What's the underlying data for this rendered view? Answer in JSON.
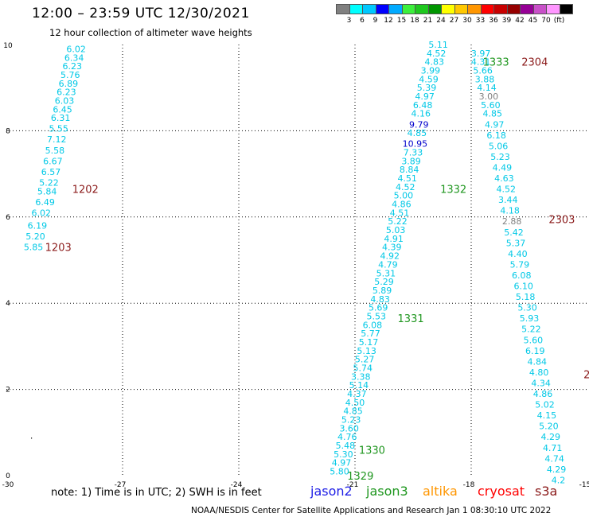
{
  "header": {
    "title": "12:00 – 23:59 UTC 12/30/2021",
    "subtitle": "12 hour collection of altimeter wave heights"
  },
  "colorbar": {
    "colors": [
      "#808080",
      "#00ffff",
      "#00c8ff",
      "#0000ff",
      "#00aaff",
      "#3cf03c",
      "#1ec81e",
      "#009600",
      "#ffff00",
      "#ffc800",
      "#ff9600",
      "#ff0000",
      "#c80000",
      "#960000",
      "#960096",
      "#c850c8",
      "#ff96ff",
      "#000000"
    ],
    "labels": [
      "3",
      "6",
      "9",
      "12",
      "15",
      "18",
      "21",
      "24",
      "27",
      "30",
      "33",
      "36",
      "39",
      "42",
      "45",
      "70",
      "(ft)"
    ]
  },
  "legend": {
    "note": "note:  1) Time is in UTC;  2) SWH is in feet",
    "satellites": [
      {
        "name": "jason2",
        "color": "#1e1ee6"
      },
      {
        "name": "jason3",
        "color": "#1e961e"
      },
      {
        "name": "altika",
        "color": "#ff9600"
      },
      {
        "name": "cryosat",
        "color": "#ff0000"
      },
      {
        "name": "s3a",
        "color": "#8b1a1a"
      }
    ]
  },
  "footer": "NOAA/NESDIS Center for Satellite Applications and Research    Jan  1 08:30:10 UTC 2022",
  "chart_data": {
    "type": "scatter",
    "xlim": [
      -30,
      -15
    ],
    "ylim": [
      0,
      10
    ],
    "x_ticks": [
      "-30",
      "-27",
      "-24",
      "-21",
      "-18",
      "-15"
    ],
    "y_ticks": [
      "0",
      "2",
      "4",
      "6",
      "8",
      "10"
    ],
    "grid": true,
    "tracks": [
      {
        "name": "1202",
        "name_color": "#8b1a1a",
        "label_pos": {
          "x": -28.3,
          "y": 6.65
        },
        "points": [
          {
            "x": -28.2,
            "y": 9.9,
            "v": "6.02",
            "c": "#00c8e6"
          },
          {
            "x": -28.25,
            "y": 9.7,
            "v": "6.34",
            "c": "#00c8e6"
          },
          {
            "x": -28.3,
            "y": 9.5,
            "v": "6.23",
            "c": "#00c8e6"
          },
          {
            "x": -28.35,
            "y": 9.3,
            "v": "5.76",
            "c": "#00c8e6"
          },
          {
            "x": -28.4,
            "y": 9.1,
            "v": "6.89",
            "c": "#00c8e6"
          },
          {
            "x": -28.45,
            "y": 8.9,
            "v": "6.23",
            "c": "#00c8e6"
          },
          {
            "x": -28.5,
            "y": 8.7,
            "v": "6.03",
            "c": "#00c8e6"
          },
          {
            "x": -28.55,
            "y": 8.5,
            "v": "6.45",
            "c": "#00c8e6"
          },
          {
            "x": -28.6,
            "y": 8.3,
            "v": "6.31",
            "c": "#00c8e6"
          },
          {
            "x": -28.65,
            "y": 8.05,
            "v": "5.55",
            "c": "#00c8e6"
          },
          {
            "x": -28.7,
            "y": 7.8,
            "v": "7.12",
            "c": "#00c8e6"
          },
          {
            "x": -28.75,
            "y": 7.55,
            "v": "5.58",
            "c": "#00c8e6"
          },
          {
            "x": -28.8,
            "y": 7.3,
            "v": "6.67",
            "c": "#00c8e6"
          },
          {
            "x": -28.85,
            "y": 7.05,
            "v": "6.57",
            "c": "#00c8e6"
          },
          {
            "x": -28.9,
            "y": 6.8,
            "v": "5.22",
            "c": "#00c8e6"
          },
          {
            "x": -28.95,
            "y": 6.6,
            "v": "5.84",
            "c": "#00c8e6"
          },
          {
            "x": -29.0,
            "y": 6.35,
            "v": "6.49",
            "c": "#00c8e6"
          }
        ]
      },
      {
        "name": "1203",
        "name_color": "#8b1a1a",
        "label_pos": {
          "x": -29.0,
          "y": 5.3
        },
        "points": [
          {
            "x": -29.1,
            "y": 6.1,
            "v": "6.02",
            "c": "#00c8e6"
          },
          {
            "x": -29.2,
            "y": 5.8,
            "v": "6.19",
            "c": "#00c8e6"
          },
          {
            "x": -29.25,
            "y": 5.55,
            "v": "5.20",
            "c": "#00c8e6"
          },
          {
            "x": -29.3,
            "y": 5.3,
            "v": "5.85",
            "c": "#00c8e6"
          }
        ]
      },
      {
        "name": "1329",
        "name_color": "#1e961e",
        "label_pos": {
          "x": -21.2,
          "y": 0.0
        },
        "points": [
          {
            "x": -21.4,
            "y": 0.1,
            "v": "5.80",
            "c": "#00c8e6"
          },
          {
            "x": -21.35,
            "y": 0.3,
            "v": "4.97",
            "c": "#00c8e6"
          },
          {
            "x": -21.3,
            "y": 0.5,
            "v": "5.30",
            "c": "#00c8e6"
          },
          {
            "x": -21.25,
            "y": 0.7,
            "v": "5.48",
            "c": "#00c8e6"
          }
        ]
      },
      {
        "name": "1330",
        "name_color": "#1e961e",
        "label_pos": {
          "x": -20.9,
          "y": 0.6
        },
        "points": [
          {
            "x": -21.2,
            "y": 0.9,
            "v": "4.76",
            "c": "#00c8e6"
          },
          {
            "x": -21.15,
            "y": 1.1,
            "v": "3.60",
            "c": "#00c8e6"
          },
          {
            "x": -21.1,
            "y": 1.3,
            "v": "5.23",
            "c": "#00c8e6"
          },
          {
            "x": -21.05,
            "y": 1.5,
            "v": "4.85",
            "c": "#00c8e6"
          },
          {
            "x": -21.0,
            "y": 1.7,
            "v": "4.50",
            "c": "#00c8e6"
          },
          {
            "x": -20.95,
            "y": 1.9,
            "v": "4.37",
            "c": "#00c8e6"
          },
          {
            "x": -20.9,
            "y": 2.1,
            "v": "5.14",
            "c": "#00c8e6"
          },
          {
            "x": -20.85,
            "y": 2.3,
            "v": "3.38",
            "c": "#00c8e6"
          },
          {
            "x": -20.8,
            "y": 2.5,
            "v": "5.74",
            "c": "#00c8e6"
          },
          {
            "x": -20.75,
            "y": 2.7,
            "v": "5.27",
            "c": "#00c8e6"
          },
          {
            "x": -20.7,
            "y": 2.9,
            "v": "5.13",
            "c": "#00c8e6"
          },
          {
            "x": -20.65,
            "y": 3.1,
            "v": "5.17",
            "c": "#00c8e6"
          },
          {
            "x": -20.6,
            "y": 3.3,
            "v": "5.77",
            "c": "#00c8e6"
          },
          {
            "x": -20.55,
            "y": 3.5,
            "v": "6.08",
            "c": "#00c8e6"
          }
        ]
      },
      {
        "name": "1331",
        "name_color": "#1e961e",
        "label_pos": {
          "x": -19.9,
          "y": 3.65
        },
        "points": [
          {
            "x": -20.45,
            "y": 3.7,
            "v": "5.53",
            "c": "#00c8e6"
          },
          {
            "x": -20.4,
            "y": 3.9,
            "v": "5.69",
            "c": "#00c8e6"
          },
          {
            "x": -20.35,
            "y": 4.1,
            "v": "4.83",
            "c": "#00c8e6"
          },
          {
            "x": -20.3,
            "y": 4.3,
            "v": "5.89",
            "c": "#00c8e6"
          },
          {
            "x": -20.25,
            "y": 4.5,
            "v": "5.29",
            "c": "#00c8e6"
          },
          {
            "x": -20.2,
            "y": 4.7,
            "v": "5.31",
            "c": "#00c8e6"
          },
          {
            "x": -20.15,
            "y": 4.9,
            "v": "4.79",
            "c": "#00c8e6"
          },
          {
            "x": -20.1,
            "y": 5.1,
            "v": "4.92",
            "c": "#00c8e6"
          },
          {
            "x": -20.05,
            "y": 5.3,
            "v": "4.39",
            "c": "#00c8e6"
          },
          {
            "x": -20.0,
            "y": 5.5,
            "v": "4.91",
            "c": "#00c8e6"
          },
          {
            "x": -19.95,
            "y": 5.7,
            "v": "5.03",
            "c": "#00c8e6"
          },
          {
            "x": -19.9,
            "y": 5.9,
            "v": "5.22",
            "c": "#00c8e6"
          },
          {
            "x": -19.85,
            "y": 6.1,
            "v": "4.51",
            "c": "#00c8e6"
          },
          {
            "x": -19.8,
            "y": 6.3,
            "v": "4.86",
            "c": "#00c8e6"
          },
          {
            "x": -19.75,
            "y": 6.5,
            "v": "5.00",
            "c": "#00c8e6"
          }
        ]
      },
      {
        "name": "1332",
        "name_color": "#1e961e",
        "label_pos": {
          "x": -18.8,
          "y": 6.65
        },
        "points": [
          {
            "x": -19.7,
            "y": 6.7,
            "v": "4.52",
            "c": "#00c8e6"
          },
          {
            "x": -19.65,
            "y": 6.9,
            "v": "4.51",
            "c": "#00c8e6"
          },
          {
            "x": -19.6,
            "y": 7.1,
            "v": "8.84",
            "c": "#00c8e6"
          },
          {
            "x": -19.55,
            "y": 7.3,
            "v": "3.89",
            "c": "#00c8e6"
          },
          {
            "x": -19.5,
            "y": 7.5,
            "v": "7.33",
            "c": "#00c8e6"
          },
          {
            "x": -19.45,
            "y": 7.7,
            "v": "10.95",
            "c": "#0000cc"
          },
          {
            "x": -19.4,
            "y": 7.95,
            "v": "4.85",
            "c": "#00c8e6"
          },
          {
            "x": -19.35,
            "y": 8.15,
            "v": "9.79",
            "c": "#0000cc"
          },
          {
            "x": -19.3,
            "y": 8.4,
            "v": "4.16",
            "c": "#00c8e6"
          },
          {
            "x": -19.25,
            "y": 8.6,
            "v": "6.48",
            "c": "#00c8e6"
          },
          {
            "x": -19.2,
            "y": 8.8,
            "v": "4.97",
            "c": "#00c8e6"
          },
          {
            "x": -19.15,
            "y": 9.0,
            "v": "5.39",
            "c": "#00c8e6"
          },
          {
            "x": -19.1,
            "y": 9.2,
            "v": "4.59",
            "c": "#00c8e6"
          },
          {
            "x": -19.05,
            "y": 9.4,
            "v": "3.99",
            "c": "#00c8e6"
          }
        ]
      },
      {
        "name": "1333",
        "name_color": "#1e961e",
        "label_pos": {
          "x": -17.7,
          "y": 9.6
        },
        "points": [
          {
            "x": -18.95,
            "y": 9.6,
            "v": "4.83",
            "c": "#00c8e6"
          },
          {
            "x": -18.9,
            "y": 9.8,
            "v": "4.52",
            "c": "#00c8e6"
          },
          {
            "x": -18.85,
            "y": 10.0,
            "v": "5.11",
            "c": "#00c8e6"
          }
        ]
      },
      {
        "name": "2304",
        "name_color": "#8b1a1a",
        "label_pos": {
          "x": -16.7,
          "y": 9.6
        },
        "points": [
          {
            "x": -17.75,
            "y": 9.8,
            "v": "3.97",
            "c": "#00c8e6"
          },
          {
            "x": -17.75,
            "y": 9.6,
            "v": "4.31",
            "c": "#00c8e6"
          },
          {
            "x": -17.7,
            "y": 9.4,
            "v": "5.66",
            "c": "#00c8e6"
          },
          {
            "x": -17.65,
            "y": 9.2,
            "v": "3.88",
            "c": "#00c8e6"
          },
          {
            "x": -17.6,
            "y": 9.0,
            "v": "4.14",
            "c": "#00c8e6"
          },
          {
            "x": -17.55,
            "y": 8.8,
            "v": "3.00",
            "c": "#808080"
          },
          {
            "x": -17.5,
            "y": 8.6,
            "v": "5.60",
            "c": "#00c8e6"
          },
          {
            "x": -17.45,
            "y": 8.4,
            "v": "4.85",
            "c": "#00c8e6"
          },
          {
            "x": -17.4,
            "y": 8.15,
            "v": "4.97",
            "c": "#00c8e6"
          },
          {
            "x": -17.35,
            "y": 7.9,
            "v": "6.18",
            "c": "#00c8e6"
          },
          {
            "x": -17.3,
            "y": 7.65,
            "v": "5.06",
            "c": "#00c8e6"
          },
          {
            "x": -17.25,
            "y": 7.4,
            "v": "5.23",
            "c": "#00c8e6"
          },
          {
            "x": -17.2,
            "y": 7.15,
            "v": "4.49",
            "c": "#00c8e6"
          },
          {
            "x": -17.15,
            "y": 6.9,
            "v": "4.63",
            "c": "#00c8e6"
          },
          {
            "x": -17.1,
            "y": 6.65,
            "v": "4.52",
            "c": "#00c8e6"
          },
          {
            "x": -17.05,
            "y": 6.4,
            "v": "3.44",
            "c": "#00c8e6"
          }
        ]
      },
      {
        "name": "2303",
        "name_color": "#8b1a1a",
        "label_pos": {
          "x": -16.0,
          "y": 5.95
        },
        "points": [
          {
            "x": -17.0,
            "y": 6.15,
            "v": "4.18",
            "c": "#00c8e6"
          },
          {
            "x": -16.95,
            "y": 5.9,
            "v": "2.88",
            "c": "#808080"
          },
          {
            "x": -16.9,
            "y": 5.65,
            "v": "5.42",
            "c": "#00c8e6"
          },
          {
            "x": -16.85,
            "y": 5.4,
            "v": "5.37",
            "c": "#00c8e6"
          },
          {
            "x": -16.8,
            "y": 5.15,
            "v": "4.40",
            "c": "#00c8e6"
          },
          {
            "x": -16.75,
            "y": 4.9,
            "v": "5.79",
            "c": "#00c8e6"
          },
          {
            "x": -16.7,
            "y": 4.65,
            "v": "6.08",
            "c": "#00c8e6"
          },
          {
            "x": -16.65,
            "y": 4.4,
            "v": "6.10",
            "c": "#00c8e6"
          },
          {
            "x": -16.6,
            "y": 4.15,
            "v": "5.18",
            "c": "#00c8e6"
          },
          {
            "x": -16.55,
            "y": 3.9,
            "v": "5.30",
            "c": "#00c8e6"
          },
          {
            "x": -16.5,
            "y": 3.65,
            "v": "5.93",
            "c": "#00c8e6"
          },
          {
            "x": -16.45,
            "y": 3.4,
            "v": "5.22",
            "c": "#00c8e6"
          },
          {
            "x": -16.4,
            "y": 3.15,
            "v": "5.60",
            "c": "#00c8e6"
          },
          {
            "x": -16.35,
            "y": 2.9,
            "v": "6.19",
            "c": "#00c8e6"
          },
          {
            "x": -16.3,
            "y": 2.65,
            "v": "4.84",
            "c": "#00c8e6"
          },
          {
            "x": -16.25,
            "y": 2.4,
            "v": "4.80",
            "c": "#00c8e6"
          }
        ]
      },
      {
        "name": "2",
        "name_color": "#8b1a1a",
        "label_pos": {
          "x": -15.1,
          "y": 2.35
        },
        "points": [
          {
            "x": -16.2,
            "y": 2.15,
            "v": "4.34",
            "c": "#00c8e6"
          },
          {
            "x": -16.15,
            "y": 1.9,
            "v": "4.86",
            "c": "#00c8e6"
          },
          {
            "x": -16.1,
            "y": 1.65,
            "v": "5.02",
            "c": "#00c8e6"
          },
          {
            "x": -16.05,
            "y": 1.4,
            "v": "4.15",
            "c": "#00c8e6"
          },
          {
            "x": -16.0,
            "y": 1.15,
            "v": "5.20",
            "c": "#00c8e6"
          },
          {
            "x": -15.95,
            "y": 0.9,
            "v": "4.29",
            "c": "#00c8e6"
          },
          {
            "x": -15.9,
            "y": 0.65,
            "v": "4.71",
            "c": "#00c8e6"
          },
          {
            "x": -15.85,
            "y": 0.4,
            "v": "4.74",
            "c": "#00c8e6"
          },
          {
            "x": -15.8,
            "y": 0.15,
            "v": "4.29",
            "c": "#00c8e6"
          },
          {
            "x": -15.75,
            "y": -0.1,
            "v": "4.2",
            "c": "#00c8e6"
          }
        ]
      }
    ],
    "extra_marks": [
      {
        "x": -29.35,
        "y": 0.8,
        "v": "·",
        "c": "#000000"
      }
    ]
  }
}
